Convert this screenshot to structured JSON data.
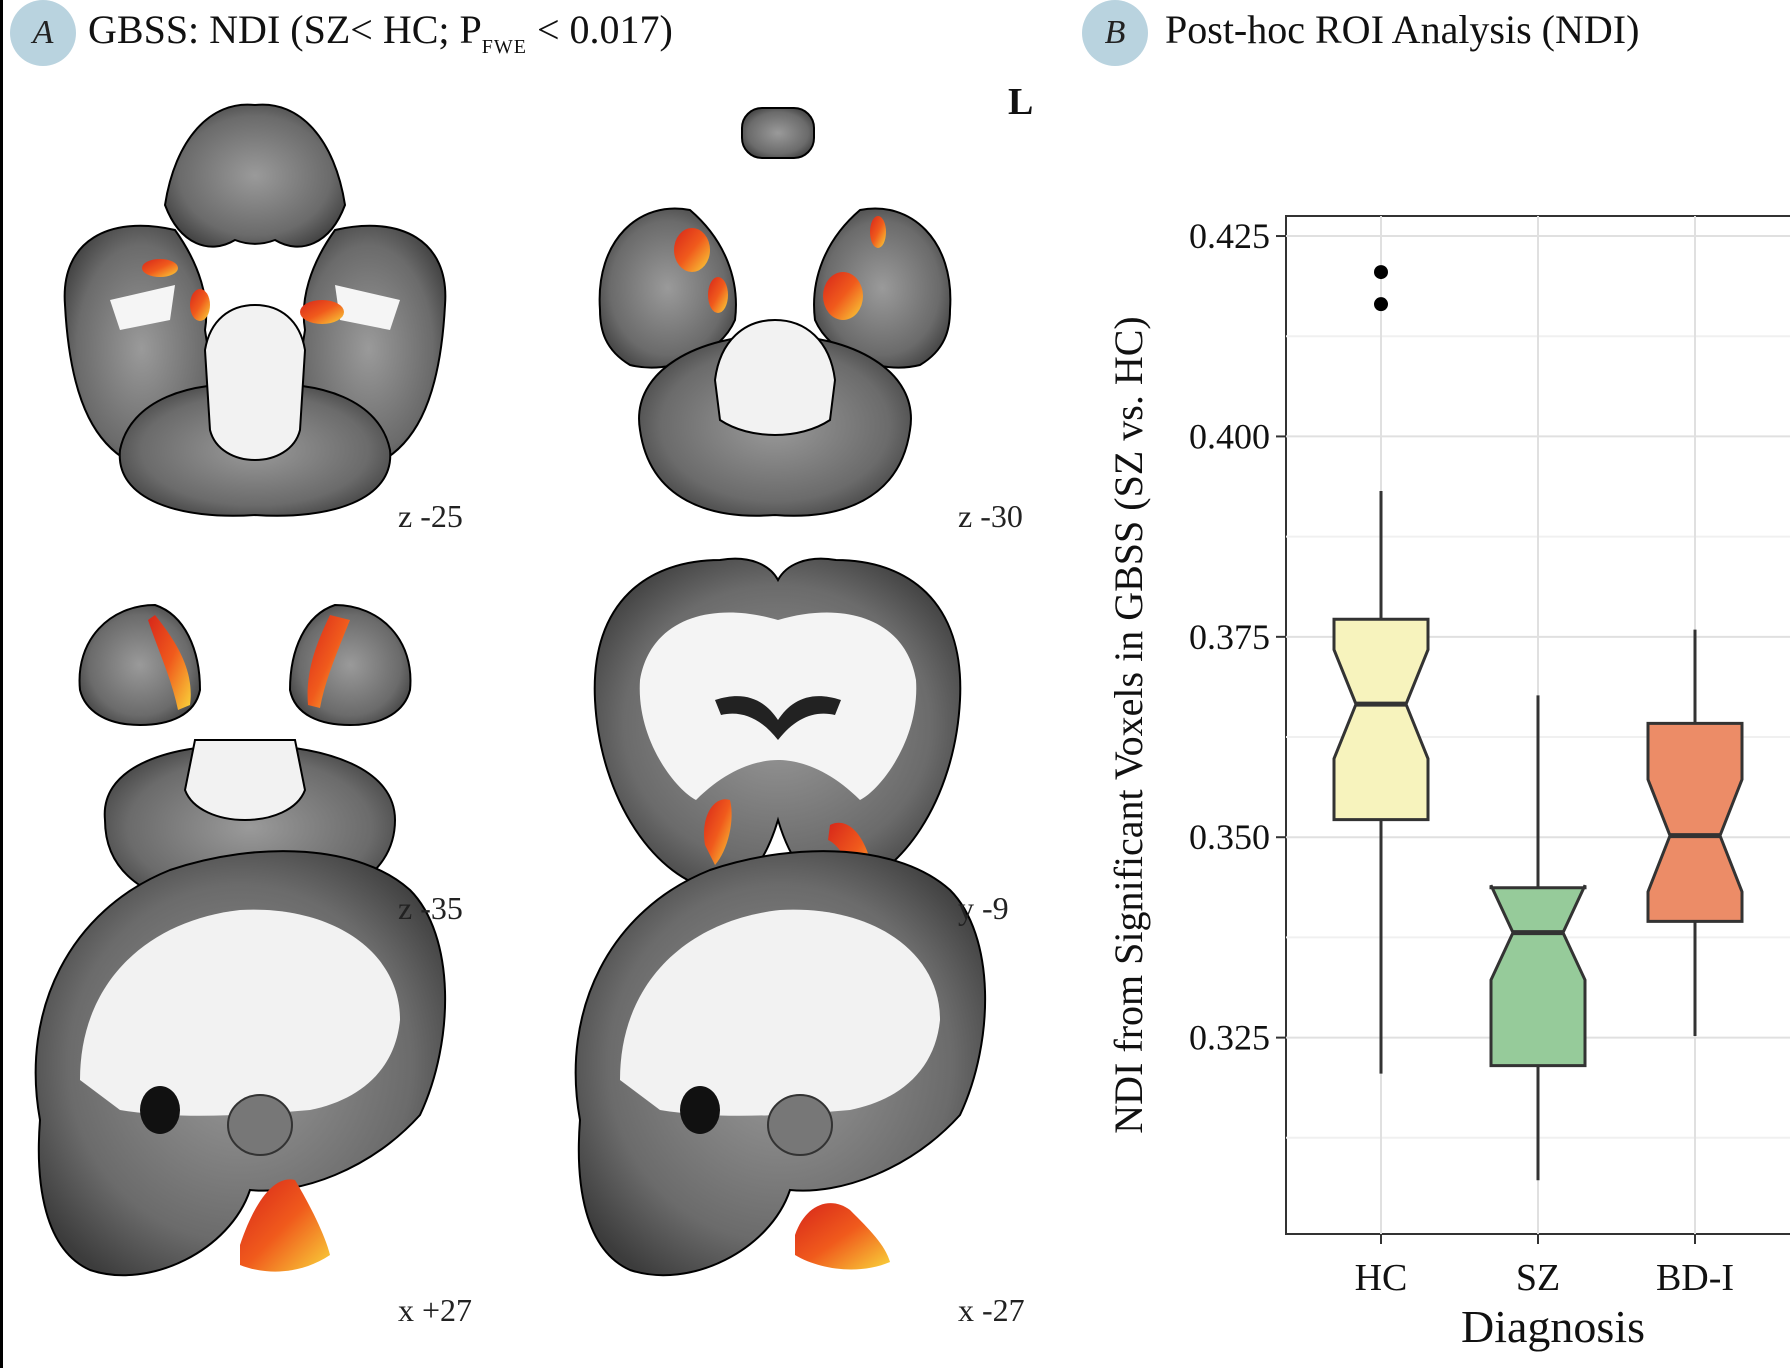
{
  "panel_a": {
    "badge": "A",
    "title_main": "GBSS: NDI (SZ< HC; P",
    "title_sub": "FWE",
    "title_end": " < 0.017)",
    "side_marker": "L",
    "slices": [
      {
        "label": "z -25"
      },
      {
        "label": "z -30"
      },
      {
        "label": "z -35"
      },
      {
        "label": "y -9"
      },
      {
        "label": "x +27"
      },
      {
        "label": "x -27"
      }
    ]
  },
  "panel_b": {
    "badge": "B",
    "title": "Post-hoc ROI Analysis (NDI)"
  },
  "chart_data": {
    "type": "boxplot",
    "xlabel": "Diagnosis",
    "ylabel": "NDI from Significant Voxels in GBSS (SZ vs. HC)",
    "categories": [
      "HC",
      "SZ",
      "BD-I"
    ],
    "yticks": [
      "0.325",
      "0.350",
      "0.375",
      "0.400",
      "0.425"
    ],
    "ylim": [
      0.3005,
      0.4275
    ],
    "grid": true,
    "notched": true,
    "boxes": [
      {
        "name": "HC",
        "whisker_low": 0.3205,
        "q1": 0.3522,
        "median": 0.3666,
        "q3": 0.3772,
        "whisker_high": 0.3932,
        "notch_low": 0.3598,
        "notch_high": 0.3734,
        "outliers": [
          0.4205,
          0.4165
        ],
        "color": "#f7f3bd"
      },
      {
        "name": "SZ",
        "whisker_low": 0.3072,
        "q1": 0.3215,
        "median": 0.3381,
        "q3": 0.3437,
        "whisker_high": 0.3677,
        "notch_low": 0.3322,
        "notch_high": 0.344,
        "outliers": [],
        "color": "#96cb9a"
      },
      {
        "name": "BD-I",
        "whisker_low": 0.3252,
        "q1": 0.3395,
        "median": 0.3502,
        "q3": 0.3642,
        "whisker_high": 0.3759,
        "notch_low": 0.3432,
        "notch_high": 0.3572,
        "outliers": [],
        "color": "#ec8c67"
      }
    ]
  }
}
